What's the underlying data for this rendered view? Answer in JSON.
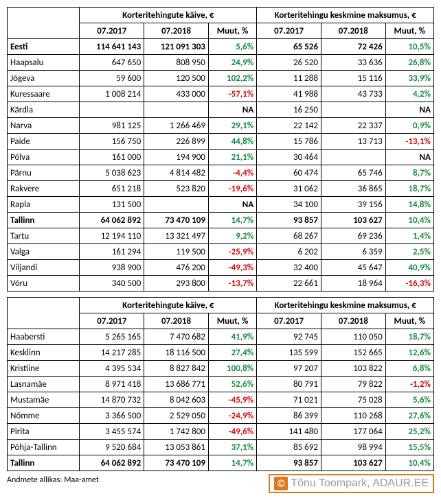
{
  "colors": {
    "pos": "#158a3f",
    "neg": "#d10a0a",
    "bold_total": "#000000"
  },
  "headers": {
    "turnover": "Korteritehingute käive, €",
    "avgprice": "Korteritehingu keskmine maksumus, €",
    "p1": "07.2017",
    "p2": "07.2018",
    "chg": "Muut, %"
  },
  "table1_rows": [
    {
      "label": "Eesti",
      "t1": "114 641 143",
      "t2": "121 091 303",
      "tc": "5,6%",
      "a1": "65 526",
      "a2": "72 426",
      "ac": "10,5%",
      "bold": true
    },
    {
      "label": "Haapsalu",
      "t1": "647 650",
      "t2": "808 950",
      "tc": "24,9%",
      "a1": "26 520",
      "a2": "33 636",
      "ac": "26,8%"
    },
    {
      "label": "Jõgeva",
      "t1": "59 600",
      "t2": "120 500",
      "tc": "102,2%",
      "a1": "11 288",
      "a2": "15 116",
      "ac": "33,9%"
    },
    {
      "label": "Kuressaare",
      "t1": "1 008 214",
      "t2": "433 000",
      "tc": "-57,1%",
      "a1": "41 988",
      "a2": "43 733",
      "ac": "4,2%"
    },
    {
      "label": "Kärdla",
      "t1": "",
      "t2": "",
      "tc": "NA",
      "a1": "16 250",
      "a2": "",
      "ac": "NA"
    },
    {
      "label": "Narva",
      "t1": "981 125",
      "t2": "1 266 469",
      "tc": "29,1%",
      "a1": "22 142",
      "a2": "22 337",
      "ac": "0,9%"
    },
    {
      "label": "Paide",
      "t1": "156 750",
      "t2": "226 899",
      "tc": "44,8%",
      "a1": "15 786",
      "a2": "13 713",
      "ac": "-13,1%"
    },
    {
      "label": "Põlva",
      "t1": "161 000",
      "t2": "194 900",
      "tc": "21,1%",
      "a1": "30 464",
      "a2": "",
      "ac": "NA"
    },
    {
      "label": "Pärnu",
      "t1": "5 038 623",
      "t2": "4 814 482",
      "tc": "-4,4%",
      "a1": "60 474",
      "a2": "65 746",
      "ac": "8,7%"
    },
    {
      "label": "Rakvere",
      "t1": "651 218",
      "t2": "523 820",
      "tc": "-19,6%",
      "a1": "31 062",
      "a2": "36 865",
      "ac": "18,7%"
    },
    {
      "label": "Rapla",
      "t1": "131 500",
      "t2": "",
      "tc": "NA",
      "a1": "34 100",
      "a2": "39 156",
      "ac": "14,8%"
    },
    {
      "label": "Tallinn",
      "t1": "64 062 892",
      "t2": "73 470 109",
      "tc": "14,7%",
      "a1": "93 857",
      "a2": "103 627",
      "ac": "10,4%",
      "bold": true
    },
    {
      "label": "Tartu",
      "t1": "12 194 110",
      "t2": "13 321 497",
      "tc": "9,2%",
      "a1": "68 267",
      "a2": "69 236",
      "ac": "1,4%"
    },
    {
      "label": "Valga",
      "t1": "161 294",
      "t2": "119 500",
      "tc": "-25,9%",
      "a1": "6 202",
      "a2": "6 359",
      "ac": "2,5%"
    },
    {
      "label": "Viljandi",
      "t1": "938 900",
      "t2": "476 200",
      "tc": "-49,3%",
      "a1": "32 400",
      "a2": "45 647",
      "ac": "40,9%"
    },
    {
      "label": "Võru",
      "t1": "340 500",
      "t2": "293 800",
      "tc": "-13,7%",
      "a1": "22 661",
      "a2": "18 964",
      "ac": "-16,3%"
    }
  ],
  "table2_rows": [
    {
      "label": "Haabersti",
      "t1": "5 265 165",
      "t2": "7 470 682",
      "tc": "41,9%",
      "a1": "92 745",
      "a2": "110 050",
      "ac": "18,7%"
    },
    {
      "label": "Kesklinn",
      "t1": "14 217 285",
      "t2": "18 116 500",
      "tc": "27,4%",
      "a1": "135 599",
      "a2": "152 665",
      "ac": "12,6%"
    },
    {
      "label": "Kristiine",
      "t1": "4 395 534",
      "t2": "8 827 842",
      "tc": "100,8%",
      "a1": "97 207",
      "a2": "103 822",
      "ac": "6,8%"
    },
    {
      "label": "Lasnamäe",
      "t1": "8 971 418",
      "t2": "13 686 771",
      "tc": "52,6%",
      "a1": "80 791",
      "a2": "79 822",
      "ac": "-1,2%"
    },
    {
      "label": "Mustamäe",
      "t1": "14 870 732",
      "t2": "8 042 603",
      "tc": "-45,9%",
      "a1": "71 021",
      "a2": "75 028",
      "ac": "5,6%"
    },
    {
      "label": "Nõmme",
      "t1": "3 366 500",
      "t2": "2 529 050",
      "tc": "-24,9%",
      "a1": "86 399",
      "a2": "110 268",
      "ac": "27,6%"
    },
    {
      "label": "Pirita",
      "t1": "3 455 574",
      "t2": "1 742 800",
      "tc": "-49,6%",
      "a1": "141 480",
      "a2": "177 064",
      "ac": "25,2%"
    },
    {
      "label": "Põhja-Tallinn",
      "t1": "9 520 684",
      "t2": "13 053 861",
      "tc": "37,1%",
      "a1": "85 692",
      "a2": "98 994",
      "ac": "15,5%"
    },
    {
      "label": "Tallinn",
      "t1": "64 062 892",
      "t2": "73 470 109",
      "tc": "14,7%",
      "a1": "93 857",
      "a2": "103 627",
      "ac": "10,4%",
      "bold": true
    }
  ],
  "footer_note": "Andmete allikas: Maa-amet",
  "credit": "Tõnu Toompark, ADAUR.EE"
}
